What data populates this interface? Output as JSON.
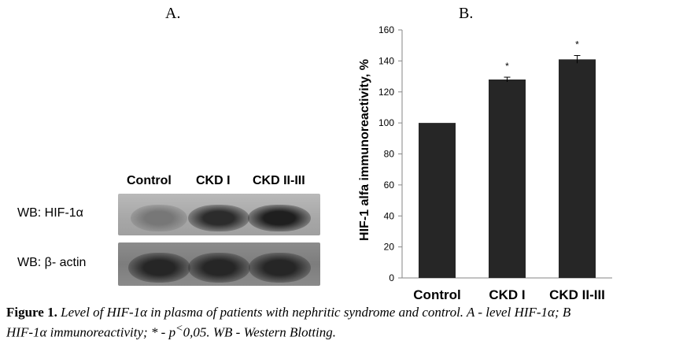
{
  "panels": {
    "a_label": "A.",
    "b_label": "B."
  },
  "blot": {
    "columns": [
      "Control",
      "CKD I",
      "CKD II-III"
    ],
    "rows": [
      {
        "label": "WB: HIF-1α"
      },
      {
        "label": "WB: β- actin"
      }
    ],
    "hif_band_intensity": [
      0.25,
      0.85,
      0.95
    ],
    "actin_band_intensity": [
      0.9,
      0.9,
      0.9
    ]
  },
  "chart_data": {
    "type": "bar",
    "categories": [
      "Control",
      "CKD I",
      "CKD II-III"
    ],
    "values": [
      100,
      128,
      141
    ],
    "errors": [
      0,
      1.5,
      2.5
    ],
    "significance": [
      "",
      "*",
      "*"
    ],
    "title": "",
    "xlabel": "",
    "ylabel": "HIF-1 alfa immunoreactivity, %",
    "ylim": [
      0,
      160
    ],
    "yticks": [
      0,
      20,
      40,
      60,
      80,
      100,
      120,
      140,
      160
    ],
    "grid": false,
    "bar_color": "#262626"
  },
  "caption": {
    "bold": "Figure 1.",
    "line1": "Level of HIF-1α in plasma of patients with nephritic syndrome and control. A - level HIF-1α; B",
    "line2_a": "HIF-1α immunoreactivity; * - p",
    "line2_sup": "<",
    "line2_b": "0,05. WB - Western Blotting."
  }
}
